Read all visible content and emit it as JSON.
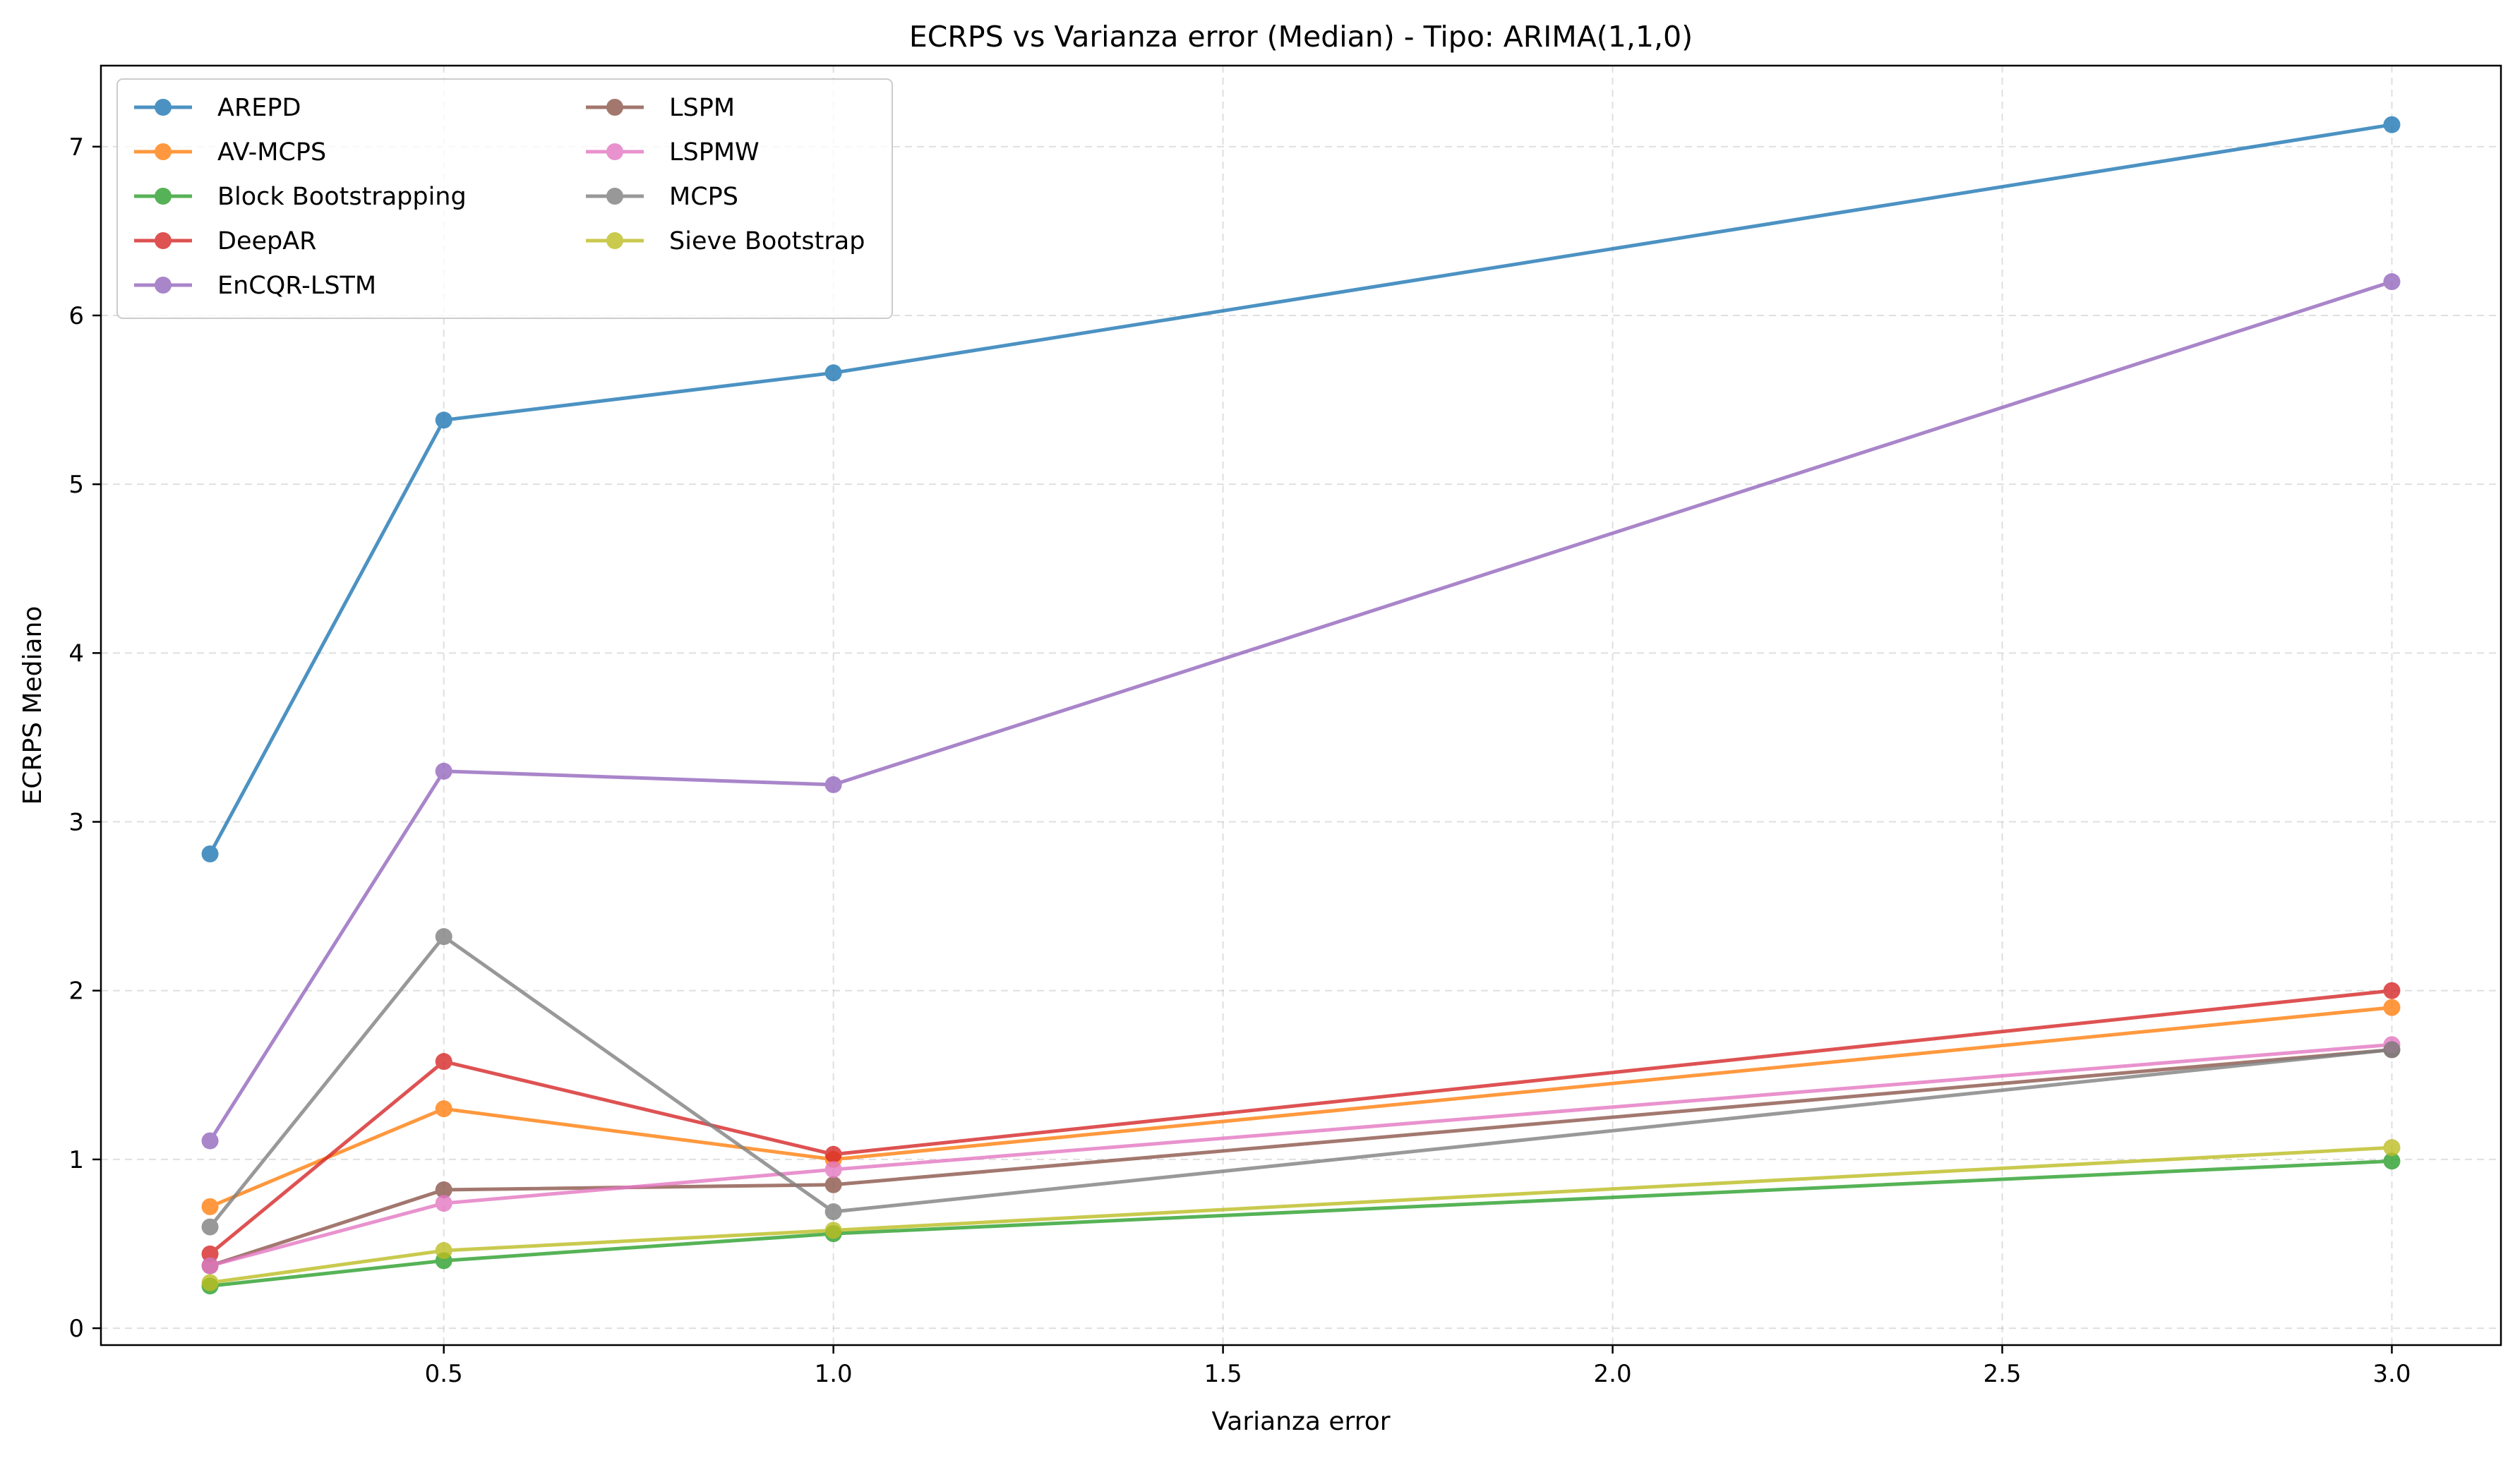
{
  "chart_data": {
    "type": "line",
    "title": "ECRPS vs Varianza error (Median) - Tipo: ARIMA(1,1,0)",
    "xlabel": "Varianza error",
    "ylabel": "ECRPS Mediano",
    "xlim": [
      0.06,
      3.14
    ],
    "ylim": [
      -0.1,
      7.48
    ],
    "xticks": [
      0.5,
      1.0,
      1.5,
      2.0,
      2.5,
      3.0
    ],
    "xtick_labels": [
      "0.5",
      "1.0",
      "1.5",
      "2.0",
      "2.5",
      "3.0"
    ],
    "yticks": [
      0,
      1,
      2,
      3,
      4,
      5,
      6,
      7
    ],
    "ytick_labels": [
      "0",
      "1",
      "2",
      "3",
      "4",
      "5",
      "6",
      "7"
    ],
    "grid": true,
    "legend_placement": "upper-left",
    "x": [
      0.2,
      0.5,
      1.0,
      3.0
    ],
    "series": [
      {
        "name": "AREPD",
        "color": "#1f77b4",
        "values": [
          2.81,
          5.38,
          5.66,
          7.13
        ]
      },
      {
        "name": "AV-MCPS",
        "color": "#ff7f0e",
        "values": [
          0.72,
          1.3,
          1.0,
          1.9
        ]
      },
      {
        "name": "Block Bootstrapping",
        "color": "#2ca02c",
        "values": [
          0.25,
          0.4,
          0.56,
          0.99
        ]
      },
      {
        "name": "DeepAR",
        "color": "#d62728",
        "values": [
          0.44,
          1.58,
          1.03,
          2.0
        ]
      },
      {
        "name": "EnCQR-LSTM",
        "color": "#9467bd",
        "values": [
          1.11,
          3.3,
          3.22,
          6.2
        ]
      },
      {
        "name": "LSPM",
        "color": "#8c564b",
        "values": [
          0.37,
          0.82,
          0.85,
          1.65
        ]
      },
      {
        "name": "LSPMW",
        "color": "#e377c2",
        "values": [
          0.37,
          0.74,
          0.94,
          1.68
        ]
      },
      {
        "name": "MCPS",
        "color": "#7f7f7f",
        "values": [
          0.6,
          2.32,
          0.69,
          1.65
        ]
      },
      {
        "name": "Sieve Bootstrap",
        "color": "#bcbd22",
        "values": [
          0.27,
          0.46,
          0.58,
          1.07
        ]
      }
    ]
  }
}
